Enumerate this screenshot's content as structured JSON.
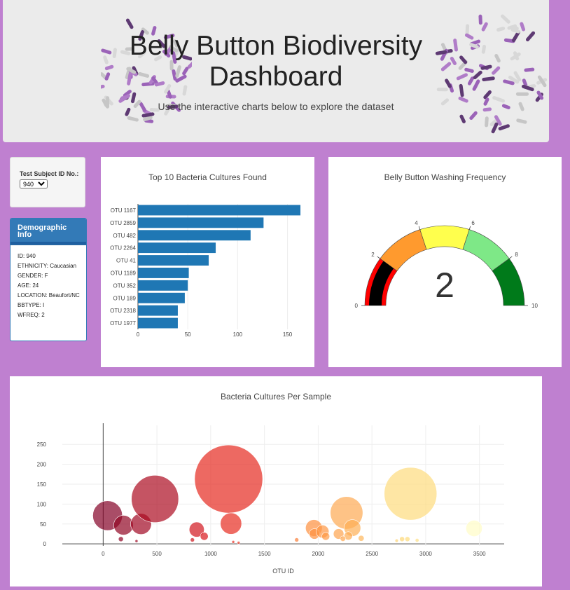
{
  "header": {
    "title_line1": "Belly Button Biodiversity",
    "title_line2": "Dashboard",
    "subtitle": "Use the interactive charts below to explore the dataset"
  },
  "selector": {
    "label": "Test Subject ID No.:",
    "selected": "940"
  },
  "demographics": {
    "title": "Demographic Info",
    "fields": [
      "ID: 940",
      "ETHNICITY: Caucasian",
      "GENDER: F",
      "AGE: 24",
      "LOCATION: Beaufort/NC",
      "BBTYPE: I",
      "WFREQ: 2"
    ]
  },
  "bar_title": "Top 10 Bacteria Cultures Found",
  "gauge_title": "Belly Button Washing Frequency",
  "bubble_title": "Bacteria Cultures Per Sample",
  "colors": {
    "page_bg": "#bf80d0",
    "bar": "#1f77b4"
  },
  "chart_data": [
    {
      "type": "bar",
      "orientation": "horizontal",
      "title": "Top 10 Bacteria Cultures Found",
      "categories": [
        "OTU 1167",
        "OTU 2859",
        "OTU 482",
        "OTU 2264",
        "OTU 41",
        "OTU 1189",
        "OTU 352",
        "OTU 189",
        "OTU 2318",
        "OTU 1977"
      ],
      "values": [
        163,
        126,
        113,
        78,
        71,
        51,
        50,
        47,
        40,
        40
      ],
      "xlim": [
        0,
        170
      ],
      "xticks": [
        0,
        50,
        100,
        150
      ]
    },
    {
      "type": "gauge",
      "title": "Belly Button Washing Frequency",
      "value": 2,
      "range": [
        0,
        10
      ],
      "ticks": [
        0,
        2,
        4,
        6,
        8,
        10
      ],
      "bands": [
        {
          "from": 0,
          "to": 2,
          "color": "#ff0000"
        },
        {
          "from": 2,
          "to": 4,
          "color": "#ff9a2e"
        },
        {
          "from": 4,
          "to": 6,
          "color": "#ffff4d"
        },
        {
          "from": 6,
          "to": 8,
          "color": "#7ee887"
        },
        {
          "from": 8,
          "to": 10,
          "color": "#007a1a"
        }
      ]
    },
    {
      "type": "scatter",
      "title": "Bacteria Cultures Per Sample",
      "xlabel": "OTU ID",
      "xticks": [
        0,
        500,
        1000,
        1500,
        2000,
        2500,
        3000,
        3500
      ],
      "yticks": [
        0,
        50,
        100,
        150,
        200,
        250
      ],
      "xlim": [
        -380,
        3730
      ],
      "ylim": [
        -5,
        298
      ],
      "points": [
        {
          "x": 41,
          "y": 71
        },
        {
          "x": 189,
          "y": 47
        },
        {
          "x": 352,
          "y": 50
        },
        {
          "x": 482,
          "y": 113
        },
        {
          "x": 1167,
          "y": 163
        },
        {
          "x": 1189,
          "y": 51
        },
        {
          "x": 870,
          "y": 36
        },
        {
          "x": 940,
          "y": 19
        },
        {
          "x": 165,
          "y": 12
        },
        {
          "x": 310,
          "y": 7
        },
        {
          "x": 830,
          "y": 10
        },
        {
          "x": 1210,
          "y": 5
        },
        {
          "x": 1260,
          "y": 3
        },
        {
          "x": 1960,
          "y": 40
        },
        {
          "x": 1965,
          "y": 25
        },
        {
          "x": 2040,
          "y": 31
        },
        {
          "x": 2070,
          "y": 19
        },
        {
          "x": 2190,
          "y": 25
        },
        {
          "x": 2264,
          "y": 78
        },
        {
          "x": 2318,
          "y": 40
        },
        {
          "x": 2280,
          "y": 20
        },
        {
          "x": 2230,
          "y": 13
        },
        {
          "x": 2400,
          "y": 14
        },
        {
          "x": 1800,
          "y": 10
        },
        {
          "x": 2859,
          "y": 126
        },
        {
          "x": 2780,
          "y": 12
        },
        {
          "x": 2830,
          "y": 12
        },
        {
          "x": 2730,
          "y": 8
        },
        {
          "x": 2920,
          "y": 9
        },
        {
          "x": 3450,
          "y": 39
        }
      ]
    }
  ]
}
